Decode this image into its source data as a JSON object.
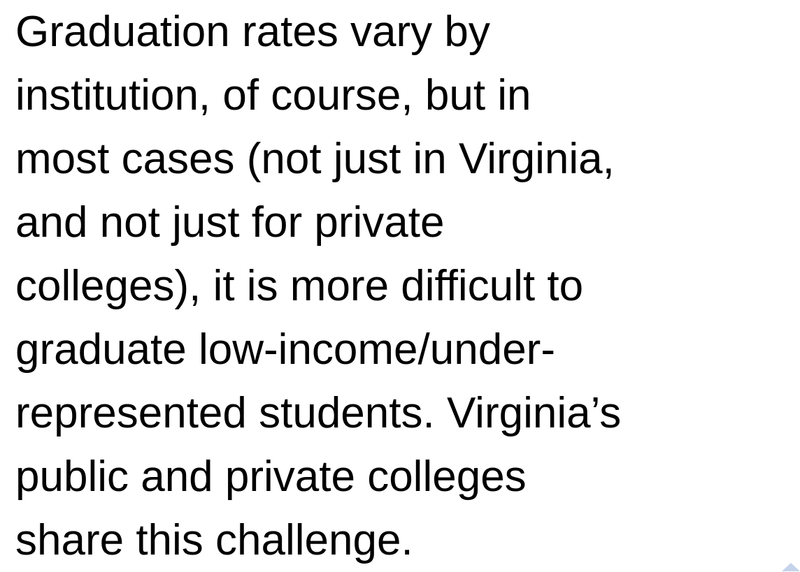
{
  "body": {
    "lines": [
      "Graduation rates vary by",
      "institution, of course, but in",
      "most cases (not just in Virginia,",
      "and not just for private",
      "colleges), it is more difficult to",
      "graduate low-income/under-",
      "represented students. Virginia’s",
      "public and private colleges",
      "share this challenge."
    ]
  }
}
